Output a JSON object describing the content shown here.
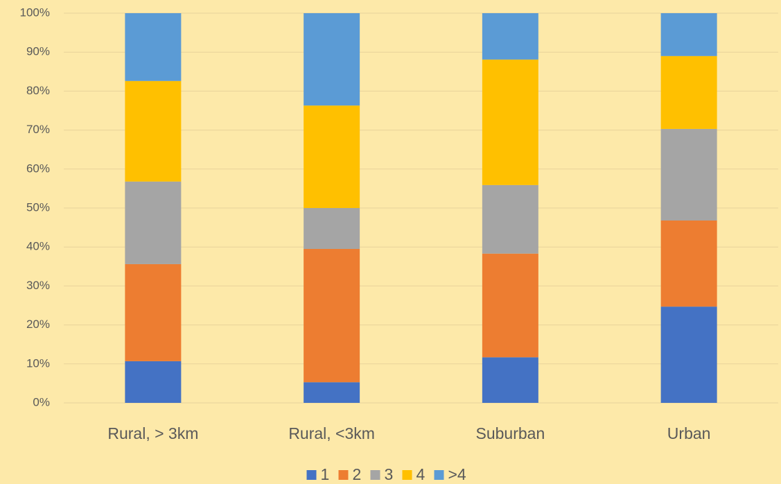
{
  "chart_data": {
    "type": "stacked_bar",
    "categories": [
      "Rural, > 3km",
      "Rural, <3km",
      "Suburban",
      "Urban"
    ],
    "series": [
      {
        "name": "1",
        "color": "#4472c4",
        "values": [
          10.7,
          5.3,
          11.7,
          24.7
        ]
      },
      {
        "name": "2",
        "color": "#ed7d31",
        "values": [
          24.9,
          34.2,
          26.6,
          22.1
        ]
      },
      {
        "name": "3",
        "color": "#a5a5a5",
        "values": [
          21.2,
          10.5,
          17.6,
          23.5
        ]
      },
      {
        "name": "4",
        "color": "#ffc000",
        "values": [
          25.8,
          26.3,
          32.2,
          18.7
        ]
      },
      {
        "name": ">4",
        "color": "#5b9bd5",
        "values": [
          17.4,
          23.7,
          11.9,
          11.0
        ]
      }
    ],
    "ylim": [
      0,
      100
    ],
    "yticks": [
      {
        "value": 0,
        "label": "0%"
      },
      {
        "value": 10,
        "label": "10%"
      },
      {
        "value": 20,
        "label": "20%"
      },
      {
        "value": 30,
        "label": "30%"
      },
      {
        "value": 40,
        "label": "40%"
      },
      {
        "value": 50,
        "label": "50%"
      },
      {
        "value": 60,
        "label": "60%"
      },
      {
        "value": 70,
        "label": "70%"
      },
      {
        "value": 80,
        "label": "80%"
      },
      {
        "value": 90,
        "label": "90%"
      },
      {
        "value": 100,
        "label": "100%"
      }
    ],
    "grid": true,
    "legend": "bottom"
  }
}
